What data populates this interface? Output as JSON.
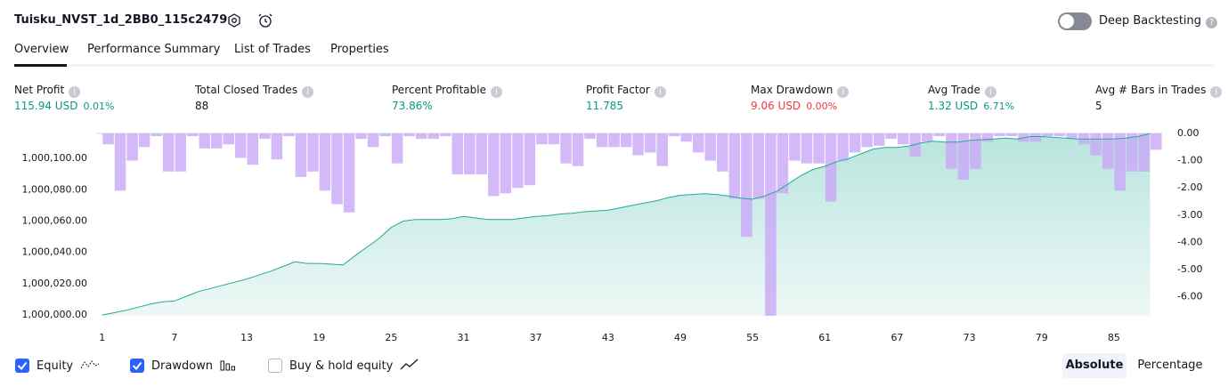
{
  "header": {
    "title": "Tuisku_NVST_1d_2BB0_115c2479",
    "deep_backtesting": "Deep Backtesting"
  },
  "tabs": [
    "Overview",
    "Performance Summary",
    "List of Trades",
    "Properties"
  ],
  "metrics": [
    {
      "label": "Net Profit",
      "value": "115.94 USD",
      "sub": "0.01%"
    },
    {
      "label": "Total Closed Trades",
      "value": "88"
    },
    {
      "label": "Percent Profitable",
      "value": "73.86%"
    },
    {
      "label": "Profit Factor",
      "value": "11.785"
    },
    {
      "label": "Max Drawdown",
      "value": "9.06 USD",
      "sub": "0.00%"
    },
    {
      "label": "Avg Trade",
      "value": "1.32 USD",
      "sub": "6.71%"
    },
    {
      "label": "Avg # Bars in Trades",
      "value": "5"
    }
  ],
  "chart_data": {
    "type": "equity",
    "x": [
      1,
      2,
      3,
      4,
      5,
      6,
      7,
      8,
      9,
      10,
      11,
      12,
      13,
      14,
      15,
      16,
      17,
      18,
      19,
      20,
      21,
      22,
      23,
      24,
      25,
      26,
      27,
      28,
      29,
      30,
      31,
      32,
      33,
      34,
      35,
      36,
      37,
      38,
      39,
      40,
      41,
      42,
      43,
      44,
      45,
      46,
      47,
      48,
      49,
      50,
      51,
      52,
      53,
      54,
      55,
      56,
      57,
      58,
      59,
      60,
      61,
      62,
      63,
      64,
      65,
      66,
      67,
      68,
      69,
      70,
      71,
      72,
      73,
      74,
      75,
      76,
      77,
      78,
      79,
      80,
      81,
      82,
      83,
      84,
      85,
      86,
      87,
      88
    ],
    "xlim": [
      0.5,
      89
    ],
    "xticks": [
      1,
      7,
      13,
      19,
      25,
      31,
      37,
      43,
      49,
      55,
      61,
      67,
      73,
      79,
      85
    ],
    "series": [
      {
        "name": "Equity",
        "color": "#22ab94",
        "checked": true,
        "values": [
          1000000,
          1000001.5,
          1000003,
          1000005,
          1000007,
          1000008.5,
          1000009,
          1000012,
          1000015,
          1000017,
          1000019,
          1000021,
          1000023,
          1000025.5,
          1000028,
          1000031,
          1000034,
          1000033,
          1000033,
          1000032.5,
          1000032,
          1000038,
          1000043.5,
          1000049,
          1000056,
          1000060,
          1000061,
          1000061,
          1000061,
          1000061.5,
          1000063,
          1000062,
          1000061,
          1000061,
          1000061,
          1000062,
          1000063,
          1000063.5,
          1000064.5,
          1000065,
          1000066,
          1000066.5,
          1000067,
          1000068.5,
          1000070,
          1000071.5,
          1000073,
          1000075,
          1000076.5,
          1000077,
          1000077.5,
          1000077,
          1000076,
          1000074.6,
          1000074,
          1000076,
          1000079,
          1000084,
          1000089,
          1000093,
          1000095,
          1000098,
          1000100,
          1000103,
          1000106,
          1000107,
          1000107,
          1000108,
          1000110,
          1000111,
          1000110.5,
          1000110.5,
          1000111.5,
          1000112,
          1000112.5,
          1000113,
          1000112.5,
          1000114,
          1000114,
          1000113.5,
          1000113,
          1000112.5,
          1000112.5,
          1000112.5,
          1000112.5,
          1000113,
          1000114,
          1000115.94
        ]
      },
      {
        "name": "Drawdown",
        "color": "#c9a7f7",
        "checked": true,
        "axis": "y2",
        "values": [
          -0.4,
          -2.1,
          -1.0,
          -0.5,
          -0.1,
          -1.4,
          -1.4,
          -0.1,
          -0.55,
          -0.55,
          -0.4,
          -0.9,
          -1.15,
          -0.2,
          -0.95,
          -0.1,
          -1.6,
          -1.4,
          -2.1,
          -2.6,
          -2.9,
          -0.2,
          -0.5,
          -0.1,
          -1.1,
          -0.1,
          -0.2,
          -0.2,
          -0.1,
          -1.5,
          -1.5,
          -1.5,
          -2.3,
          -2.2,
          -2.0,
          -1.9,
          -0.4,
          -0.4,
          -1.1,
          -1.2,
          -0.2,
          -0.5,
          -0.5,
          -0.5,
          -0.8,
          -0.7,
          -1.2,
          -0.1,
          -0.3,
          -0.7,
          -1.0,
          -1.4,
          -2.4,
          -3.8,
          -2.4,
          -6.7,
          -2.2,
          -1.0,
          -1.1,
          -1.1,
          -2.5,
          -1.0,
          -0.7,
          -0.5,
          -0.45,
          -0.2,
          -0.4,
          -0.85,
          -0.3,
          -0.1,
          -1.3,
          -1.7,
          -1.3,
          -0.3,
          -0.1,
          -0.1,
          -0.3,
          -0.3,
          -0.1,
          -0.1,
          -0.2,
          -0.4,
          -0.8,
          -1.3,
          -2.1,
          -1.4,
          -1.4,
          -0.6
        ]
      }
    ],
    "ylim": [
      999999.5,
      1000116
    ],
    "yticks": [
      {
        "value": 1000000,
        "label": "1,000,000.00"
      },
      {
        "value": 1000020,
        "label": "1,000,020.00"
      },
      {
        "value": 1000040,
        "label": "1,000,040.00"
      },
      {
        "value": 1000060,
        "label": "1,000,060.00"
      },
      {
        "value": 1000080,
        "label": "1,000,080.00"
      },
      {
        "value": 1000100,
        "label": "1,000,100.00"
      }
    ],
    "y2lim": [
      -6.7,
      0
    ],
    "y2ticks": [
      {
        "value": 0,
        "label": "0.00"
      },
      {
        "value": -1,
        "label": "-1.00"
      },
      {
        "value": -2,
        "label": "-2.00"
      },
      {
        "value": -3,
        "label": "-3.00"
      },
      {
        "value": -4,
        "label": "-4.00"
      },
      {
        "value": -5,
        "label": "-5.00"
      },
      {
        "value": -6,
        "label": "-6.00"
      }
    ],
    "legend_extra": {
      "label": "Buy & hold equity",
      "checked": false
    },
    "scale_options": [
      "Absolute",
      "Percentage"
    ]
  }
}
